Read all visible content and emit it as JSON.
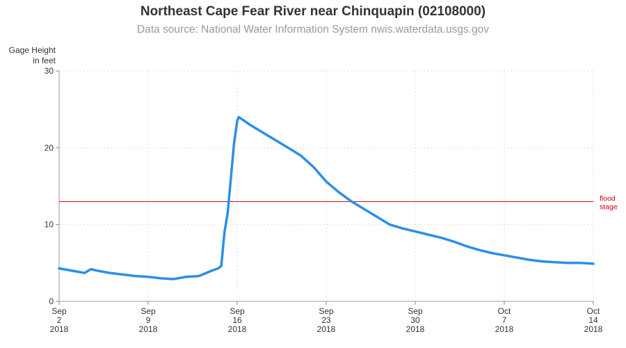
{
  "chart_data": {
    "type": "line",
    "title": "Northeast Cape Fear River near Chinquapin (02108000)",
    "subtitle": "Data source: National Water Information System nwis.waterdata.usgs.gov",
    "ylabel": [
      "Gage Height",
      "in feet"
    ],
    "xlabel": "",
    "xlim": [
      "2018-09-02",
      "2018-10-14"
    ],
    "ylim": [
      0,
      30
    ],
    "yticks": [
      0,
      10,
      20,
      30
    ],
    "xticks": [
      {
        "date": "2018-09-02",
        "lines": [
          "Sep",
          "2",
          "2018"
        ]
      },
      {
        "date": "2018-09-09",
        "lines": [
          "Sep",
          "9",
          "2018"
        ]
      },
      {
        "date": "2018-09-16",
        "lines": [
          "Sep",
          "16",
          "2018"
        ]
      },
      {
        "date": "2018-09-23",
        "lines": [
          "Sep",
          "23",
          "2018"
        ]
      },
      {
        "date": "2018-09-30",
        "lines": [
          "Sep",
          "30",
          "2018"
        ]
      },
      {
        "date": "2018-10-07",
        "lines": [
          "Oct",
          "7",
          "2018"
        ]
      },
      {
        "date": "2018-10-14",
        "lines": [
          "Oct",
          "14",
          "2018"
        ]
      }
    ],
    "grid": true,
    "line_color": "#2a8fe8",
    "reference_line": {
      "y": 13,
      "label": [
        "flood",
        "stage"
      ],
      "color": "#cc0000"
    },
    "series": [
      {
        "x": [
          "2018-09-02T00:00",
          "2018-09-03T00:00",
          "2018-09-04T00:00",
          "2018-09-04T12:00",
          "2018-09-05T00:00",
          "2018-09-06T00:00",
          "2018-09-07T00:00",
          "2018-09-08T00:00",
          "2018-09-09T00:00",
          "2018-09-10T00:00",
          "2018-09-11T00:00",
          "2018-09-12T00:00",
          "2018-09-13T00:00",
          "2018-09-14T00:00",
          "2018-09-14T12:00",
          "2018-09-14T18:00",
          "2018-09-15T00:00",
          "2018-09-15T06:00",
          "2018-09-15T12:00",
          "2018-09-15T18:00",
          "2018-09-16T00:00",
          "2018-09-16T03:00",
          "2018-09-17T00:00",
          "2018-09-18T00:00",
          "2018-09-19T00:00",
          "2018-09-20T00:00",
          "2018-09-21T00:00",
          "2018-09-22T00:00",
          "2018-09-23T00:00",
          "2018-09-24T00:00",
          "2018-09-25T00:00",
          "2018-09-26T00:00",
          "2018-09-27T00:00",
          "2018-09-28T00:00",
          "2018-09-29T00:00",
          "2018-09-30T00:00",
          "2018-10-01T00:00",
          "2018-10-02T00:00",
          "2018-10-03T00:00",
          "2018-10-04T00:00",
          "2018-10-05T00:00",
          "2018-10-06T00:00",
          "2018-10-07T00:00",
          "2018-10-08T00:00",
          "2018-10-09T00:00",
          "2018-10-10T00:00",
          "2018-10-11T00:00",
          "2018-10-12T00:00",
          "2018-10-13T00:00",
          "2018-10-14T00:00"
        ],
        "y": [
          4.3,
          4.0,
          3.7,
          4.2,
          4.0,
          3.7,
          3.5,
          3.3,
          3.2,
          3.0,
          2.9,
          3.2,
          3.3,
          4.0,
          4.3,
          4.6,
          9.0,
          11.5,
          16.0,
          20.5,
          23.5,
          24.0,
          23.0,
          22.0,
          21.0,
          20.0,
          19.0,
          17.5,
          15.6,
          14.2,
          13.0,
          12.0,
          11.0,
          10.0,
          9.5,
          9.1,
          8.7,
          8.3,
          7.8,
          7.2,
          6.7,
          6.3,
          6.0,
          5.7,
          5.4,
          5.2,
          5.1,
          5.0,
          5.0,
          4.9
        ]
      }
    ]
  }
}
